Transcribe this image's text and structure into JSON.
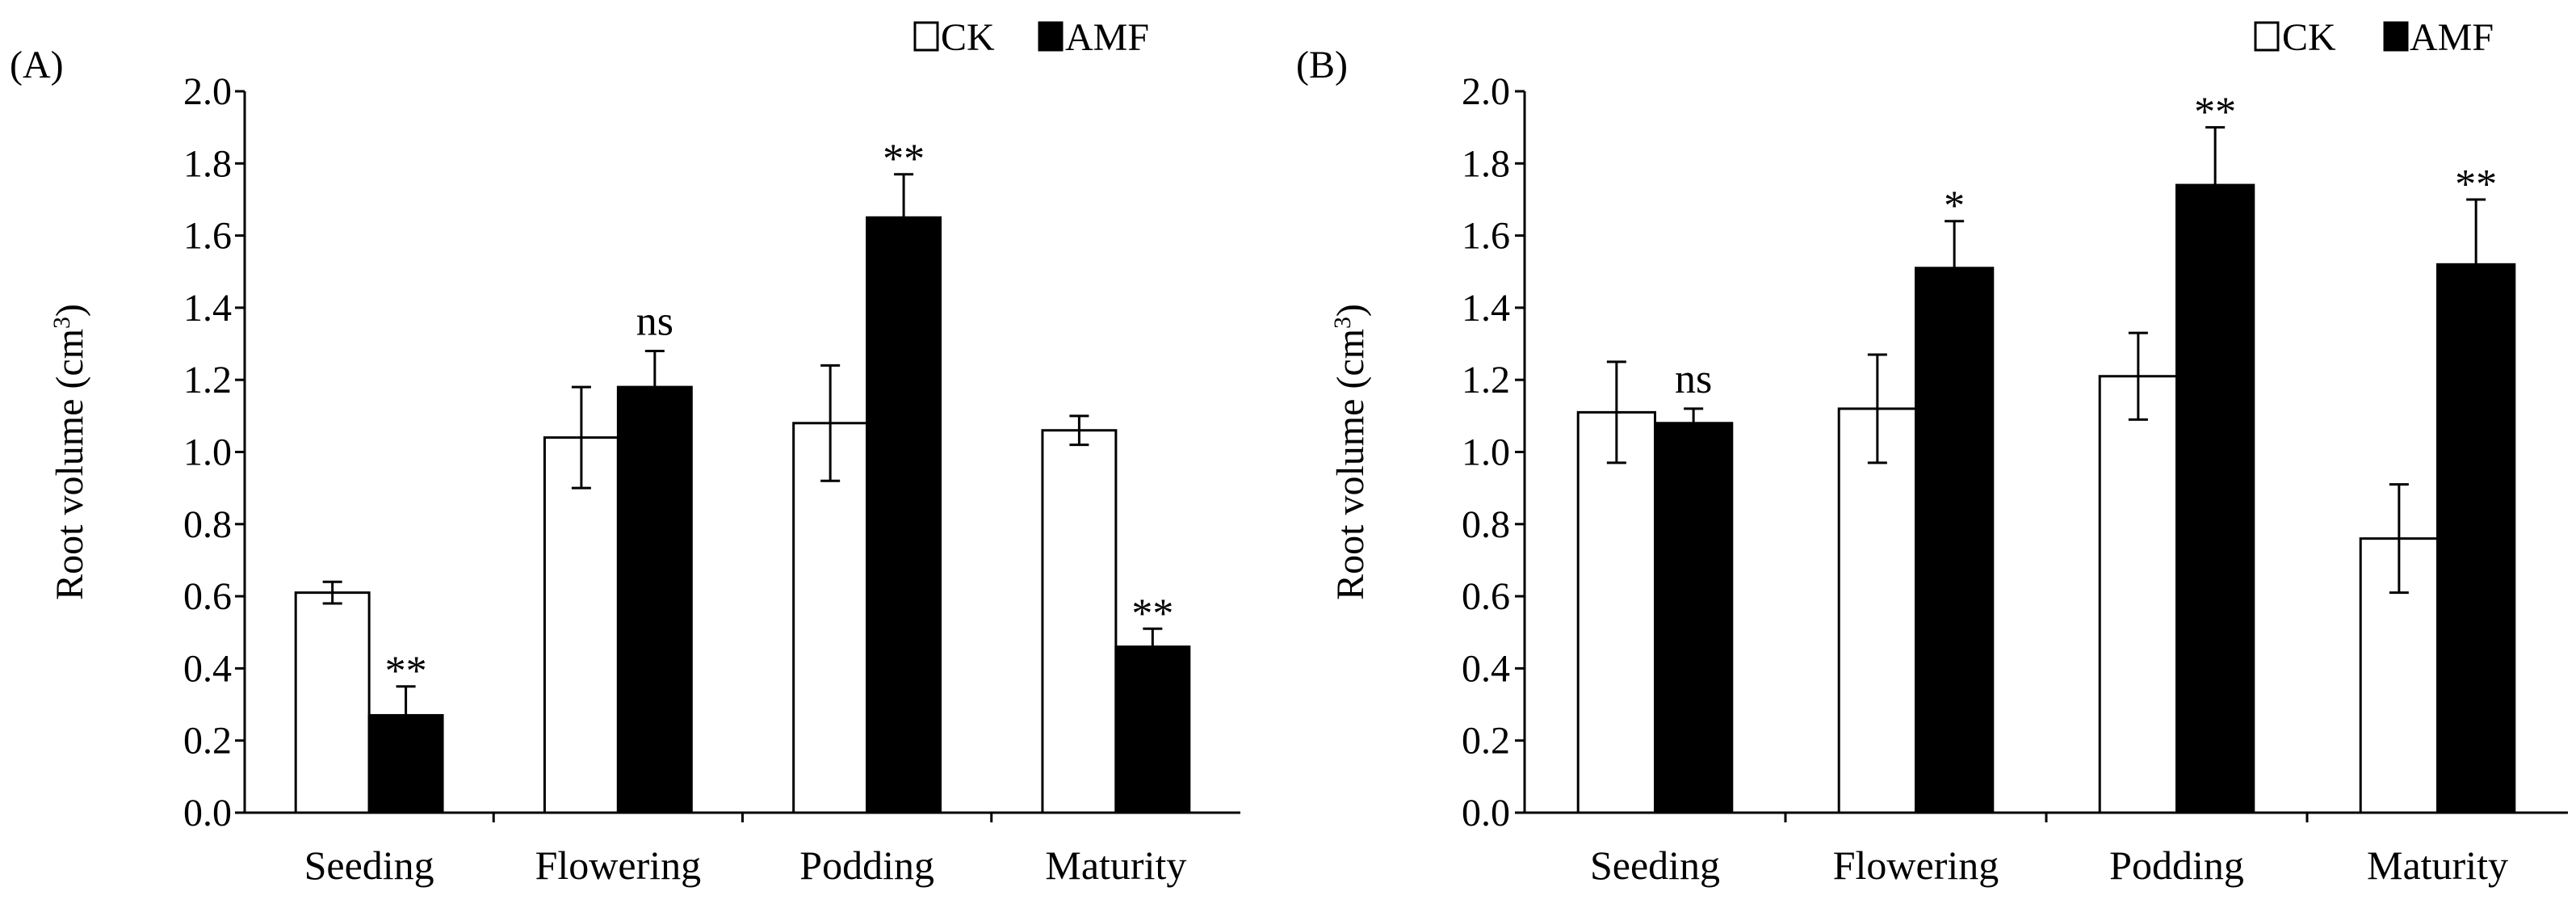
{
  "chart_data": [
    {
      "panel_label": "(A)",
      "type": "bar",
      "ylabel": "Root volume (cm",
      "ylabel_sup": "3",
      "ylabel_close": ")",
      "ylim": [
        0,
        2.0
      ],
      "yticks": [
        "0.0",
        "0.2",
        "0.4",
        "0.6",
        "0.8",
        "1.0",
        "1.2",
        "1.4",
        "1.6",
        "1.8",
        "2.0"
      ],
      "categories": [
        "Seeding",
        "Flowering",
        "Podding",
        "Maturity"
      ],
      "legend_position": "top-right",
      "grid": false,
      "series": [
        {
          "name": "CK",
          "fill": "#ffffff",
          "values": [
            0.61,
            1.04,
            1.08,
            1.06
          ],
          "errors": [
            0.03,
            0.14,
            0.16,
            0.04
          ]
        },
        {
          "name": "AMF",
          "fill": "#000000",
          "values": [
            0.27,
            1.18,
            1.65,
            0.46
          ],
          "errors": [
            0.08,
            0.1,
            0.12,
            0.05
          ]
        }
      ],
      "significance": [
        "**",
        "ns",
        "**",
        "**"
      ]
    },
    {
      "panel_label": "(B)",
      "type": "bar",
      "ylabel": "Root volume (cm",
      "ylabel_sup": "3",
      "ylabel_close": ")",
      "ylim": [
        0,
        2.0
      ],
      "yticks": [
        "0.0",
        "0.2",
        "0.4",
        "0.6",
        "0.8",
        "1.0",
        "1.2",
        "1.4",
        "1.6",
        "1.8",
        "2.0"
      ],
      "categories": [
        "Seeding",
        "Flowering",
        "Podding",
        "Maturity"
      ],
      "legend_position": "top-right",
      "grid": false,
      "series": [
        {
          "name": "CK",
          "fill": "#ffffff",
          "values": [
            1.11,
            1.12,
            1.21,
            0.76
          ],
          "errors": [
            0.14,
            0.15,
            0.12,
            0.15
          ]
        },
        {
          "name": "AMF",
          "fill": "#000000",
          "values": [
            1.08,
            1.51,
            1.74,
            1.52
          ],
          "errors": [
            0.04,
            0.13,
            0.16,
            0.18
          ]
        }
      ],
      "significance": [
        "ns",
        "*",
        "**",
        "**"
      ]
    }
  ]
}
